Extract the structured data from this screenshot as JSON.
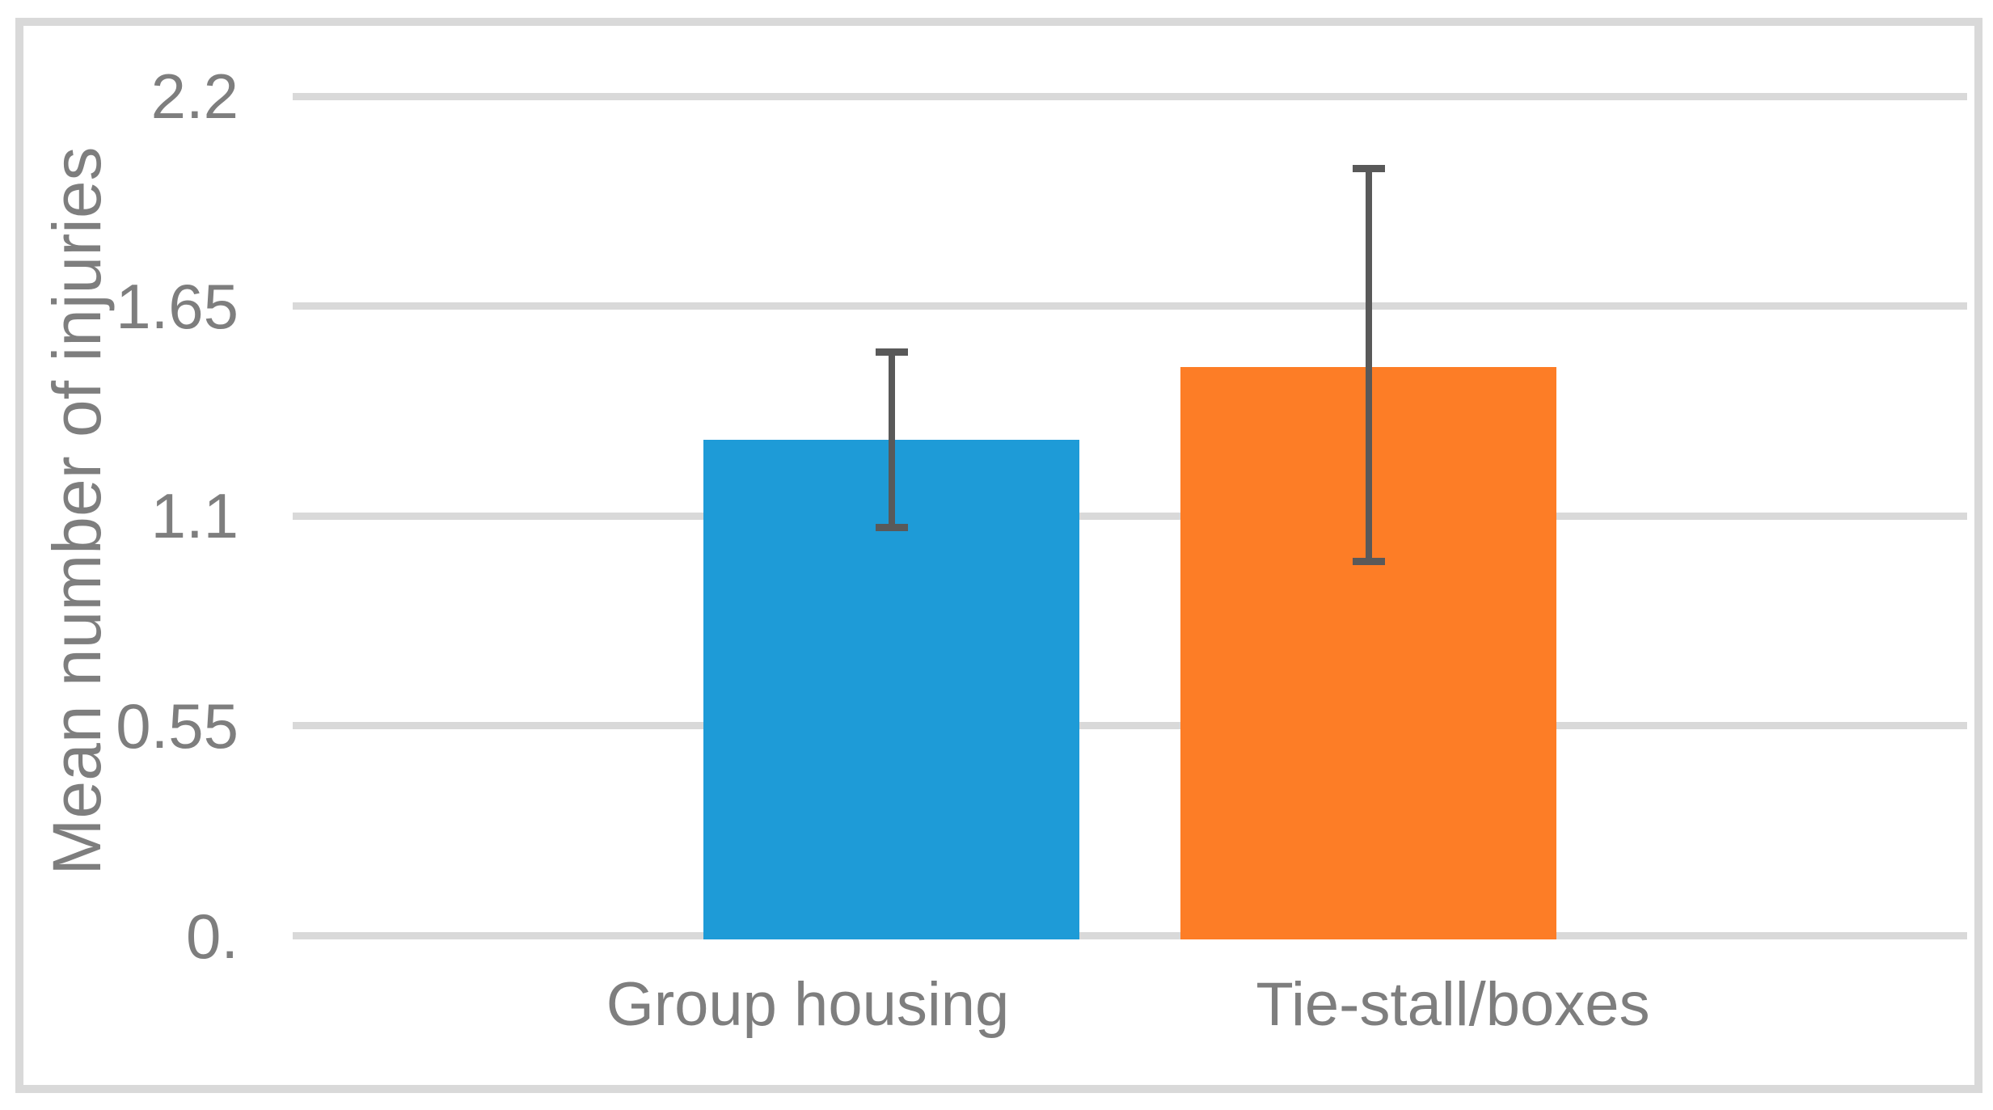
{
  "chart_data": {
    "type": "bar",
    "title": "",
    "xlabel": "",
    "ylabel": "Mean number of injuries",
    "categories": [
      "Group housing",
      "Tie-stall/boxes"
    ],
    "values": [
      1.3,
      1.49
    ],
    "error_bars": [
      {
        "low": 1.07,
        "high": 1.53
      },
      {
        "low": 0.98,
        "high": 2.01
      }
    ],
    "ylim": [
      0,
      2.2
    ],
    "yticks": [
      {
        "value": 0,
        "label": "0."
      },
      {
        "value": 0.55,
        "label": "0.55"
      },
      {
        "value": 1.1,
        "label": "1.1"
      },
      {
        "value": 1.65,
        "label": "1.65"
      },
      {
        "value": 2.2,
        "label": "2.2"
      }
    ],
    "grid": "horizontal",
    "legend": "none",
    "colors": {
      "bars": [
        "#1E9BD7",
        "#FD7D26"
      ],
      "error_bar": "#595959",
      "gridline": "#D9D9D9",
      "frame_border": "#D9D9D9",
      "text": "#7E7E7E",
      "background": "#FFFFFF"
    }
  }
}
